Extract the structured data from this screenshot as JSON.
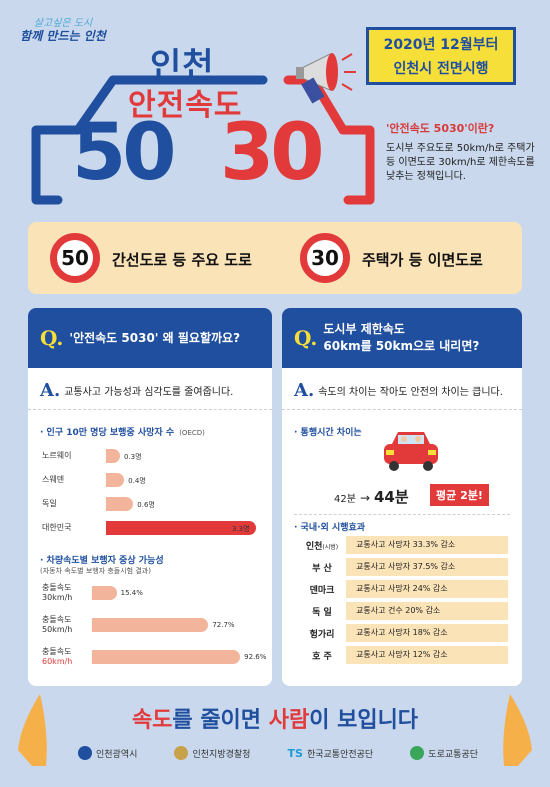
{
  "header": {
    "slogan_line1": "살고싶은 도시",
    "slogan_line2": "함께 만드는 인천",
    "title_city": "인천",
    "title_main": "안전속도",
    "number_50": "50",
    "number_30": "30",
    "date_line1": "2020년 12월부터",
    "date_line2": "인천시 전면시행",
    "what_title": "'안전속도 5030'이란?",
    "what_body": "도시부 주요도로 50km/h로 주택가 등 이면도로 30km/h로 제한속도를 낮추는 정책입니다."
  },
  "band": {
    "sign1": "50",
    "label1": "간선도로 등 주요 도로",
    "sign2": "30",
    "label2": "주택가 등 이면도로"
  },
  "left_panel": {
    "q_mark": "Q.",
    "question": "'안전속도 5030' 왜 필요할까요?",
    "a_mark": "A.",
    "answer": "교통사고 가능성과 심각도를 줄여줍니다.",
    "chart1_title": "· 인구 10만 명당 보행중 사망자 수",
    "chart1_unit": "(OECD)",
    "chart2_title": "· 차량속도별 보행자 중상 가능성",
    "chart2_sub": "(자동차 속도별 보행자 충돌시험 결과)"
  },
  "chart_data": [
    {
      "type": "bar",
      "categories": [
        "노르웨이",
        "스웨덴",
        "독일",
        "대한민국"
      ],
      "values": [
        0.3,
        0.4,
        0.6,
        3.3
      ],
      "value_labels": [
        "0.3명",
        "0.4명",
        "0.6명",
        "3.3명"
      ],
      "title": "인구 10만 명당 보행중 사망자 수",
      "colors": [
        "#f2b49a",
        "#f2b49a",
        "#f2b49a",
        "#e23a3a"
      ]
    },
    {
      "type": "bar",
      "categories": [
        "충돌속도 30km/h",
        "충돌속도 50km/h",
        "충돌속도 60km/h"
      ],
      "category_lines": [
        [
          "충돌속도",
          "30km/h"
        ],
        [
          "충돌속도",
          "50km/h"
        ],
        [
          "충돌속도",
          "60km/h"
        ]
      ],
      "values": [
        15.4,
        72.7,
        92.6
      ],
      "value_labels": [
        "15.4%",
        "72.7%",
        "92.6%"
      ],
      "title": "차량속도별 보행자 중상 가능성",
      "colors": [
        "#f2b49a",
        "#f2b49a",
        "#f2b49a"
      ]
    }
  ],
  "right_panel": {
    "q_mark": "Q.",
    "question_line1": "도시부 제한속도",
    "question_line2": "60km를 50km으로 내리면?",
    "a_mark": "A.",
    "answer": "속도의 차이는 작아도 안전의 차이는 큽니다.",
    "time_title": "· 통행시간 차이는",
    "time_from": "42분",
    "time_arrow": "→",
    "time_to": "44분",
    "avg_badge": "평균 2분!",
    "effects_title": "· 국내·외 시행효과",
    "effects": [
      {
        "region": "인천",
        "region_sub": "(시범)",
        "effect": "교통사고 사망자 33.3% 감소"
      },
      {
        "region": "부 산",
        "region_sub": "",
        "effect": "교통사고 사망자 37.5% 감소"
      },
      {
        "region": "덴마크",
        "region_sub": "",
        "effect": "교통사고 사망자 24% 감소"
      },
      {
        "region": "독 일",
        "region_sub": "",
        "effect": "교통사고 건수 20% 감소"
      },
      {
        "region": "헝가리",
        "region_sub": "",
        "effect": "교통사고 사망자 18% 감소"
      },
      {
        "region": "호 주",
        "region_sub": "",
        "effect": "교통사고 사망자 12% 감소"
      }
    ]
  },
  "footer": {
    "slogan_a": "속도",
    "slogan_b": "를 줄이면 ",
    "slogan_c": "사람",
    "slogan_d": "이 보입니다",
    "logos": [
      "인천광역시",
      "인천지방경찰청",
      "한국교통안전공단",
      "도로교통공단"
    ],
    "logo_ts": "TS"
  },
  "colors": {
    "background": "#c9d8ec",
    "blue": "#1f4f9e",
    "red": "#e23a3a",
    "yellow": "#f7df3a",
    "peach": "#fbe3b8"
  }
}
